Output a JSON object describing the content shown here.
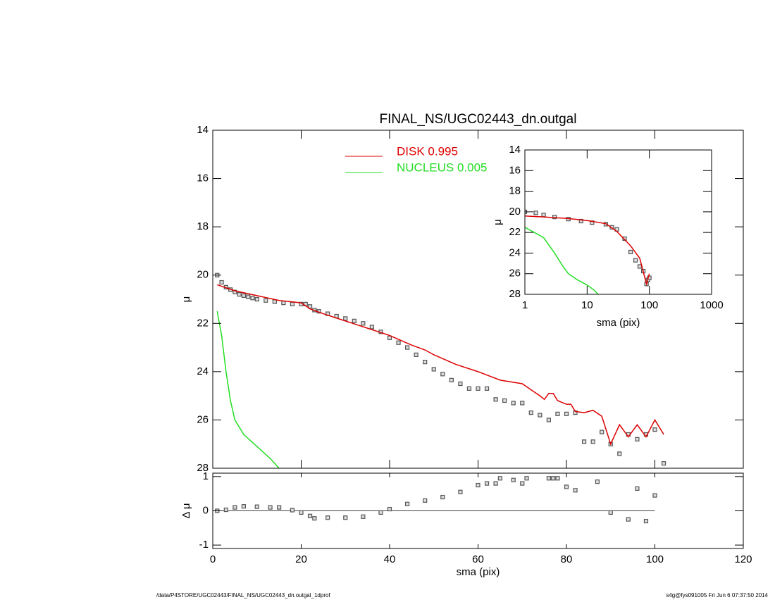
{
  "chart_data": [
    {
      "type": "scatter",
      "title": "FINAL_NS/UGC02443_dn.outgal",
      "ylabel": "μ",
      "xlim": [
        0,
        120
      ],
      "xticks": [
        0,
        20,
        40,
        60,
        80,
        100,
        120
      ],
      "ylim": [
        28,
        14
      ],
      "yticks": [
        14,
        16,
        18,
        20,
        22,
        24,
        26,
        28
      ],
      "legend": "top",
      "series": [
        {
          "mode": "markers",
          "color": "#555555",
          "x": [
            1,
            2,
            3,
            4,
            5,
            6,
            7,
            8,
            9,
            10,
            12,
            14,
            16,
            18,
            20,
            21,
            22,
            23,
            24,
            26,
            28,
            30,
            32,
            34,
            36,
            38,
            40,
            42,
            44,
            46,
            48,
            50,
            52,
            54,
            56,
            58,
            60,
            62,
            64,
            66,
            68,
            70,
            72,
            74,
            76,
            78,
            80,
            82,
            84,
            86,
            88,
            90,
            92,
            94,
            96,
            98,
            100,
            102
          ],
          "values": [
            20.0,
            20.3,
            20.5,
            20.6,
            20.7,
            20.8,
            20.85,
            20.9,
            20.95,
            21.0,
            21.05,
            21.1,
            21.15,
            21.2,
            21.2,
            21.2,
            21.3,
            21.45,
            21.5,
            21.6,
            21.7,
            21.8,
            21.9,
            22.0,
            22.15,
            22.35,
            22.6,
            22.8,
            23.0,
            23.3,
            23.6,
            23.9,
            24.1,
            24.35,
            24.5,
            24.7,
            24.7,
            24.7,
            25.15,
            25.2,
            25.3,
            25.3,
            25.7,
            25.8,
            26.0,
            25.75,
            25.75,
            25.7,
            26.9,
            26.9,
            26.5,
            27.0,
            27.4,
            26.6,
            26.8,
            26.6,
            26.4,
            27.8
          ]
        },
        {
          "name": "DISK  0.995",
          "mode": "lines",
          "color": "#dd0000",
          "x": [
            1,
            5,
            10,
            15,
            20,
            22,
            25,
            30,
            35,
            40,
            45,
            48,
            50,
            55,
            60,
            65,
            70,
            72,
            74,
            75,
            76,
            77,
            78,
            80,
            81,
            82,
            84,
            86,
            88,
            90,
            92,
            94,
            96,
            98,
            100,
            102
          ],
          "values": [
            20.4,
            20.65,
            20.85,
            21.05,
            21.15,
            21.4,
            21.6,
            21.9,
            22.2,
            22.5,
            22.9,
            23.1,
            23.3,
            23.7,
            24.0,
            24.35,
            24.5,
            24.75,
            25.0,
            25.15,
            24.9,
            24.9,
            25.2,
            25.35,
            25.35,
            25.65,
            25.7,
            25.6,
            25.85,
            27.0,
            26.2,
            26.7,
            26.2,
            26.7,
            26.0,
            26.6
          ]
        },
        {
          "name": "NUCLEUS  0.005",
          "mode": "lines",
          "color": "#22dd22",
          "x": [
            1,
            2,
            3,
            4,
            5,
            7,
            10,
            13,
            15
          ],
          "values": [
            21.5,
            22.5,
            24.0,
            25.2,
            26.0,
            26.6,
            27.1,
            27.6,
            28.0
          ]
        }
      ]
    },
    {
      "type": "scatter",
      "ylabel": "Δ μ",
      "xlabel": "sma (pix)",
      "xlim": [
        0,
        120
      ],
      "xticks": [
        0,
        20,
        40,
        60,
        80,
        100,
        120
      ],
      "ylim": [
        -1.1,
        1.1
      ],
      "yticks": [
        -1,
        0,
        1
      ],
      "series": [
        {
          "mode": "markers",
          "color": "#555555",
          "x": [
            1,
            3,
            5,
            7,
            10,
            13,
            15,
            18,
            20,
            22,
            23,
            26,
            30,
            34,
            38,
            40,
            44,
            48,
            52,
            56,
            60,
            62,
            64,
            65,
            68,
            70,
            71,
            76,
            77,
            78,
            80,
            82,
            87,
            90,
            94,
            96,
            98,
            100
          ],
          "values": [
            0.0,
            0.03,
            0.1,
            0.13,
            0.12,
            0.1,
            0.1,
            0.02,
            -0.05,
            -0.15,
            -0.22,
            -0.2,
            -0.2,
            -0.17,
            -0.05,
            0.05,
            0.2,
            0.3,
            0.4,
            0.55,
            0.75,
            0.8,
            0.8,
            0.95,
            0.9,
            0.8,
            0.95,
            0.95,
            0.95,
            0.95,
            0.7,
            0.6,
            0.85,
            -0.05,
            -0.25,
            0.65,
            -0.3,
            0.45
          ]
        }
      ]
    },
    {
      "type": "scatter",
      "ylabel": "μ",
      "xlabel": "sma (pix)",
      "xlog": true,
      "xlim": [
        1,
        1000
      ],
      "xticks": [
        1,
        10,
        100,
        1000
      ],
      "ylim": [
        28,
        14
      ],
      "yticks": [
        14,
        16,
        18,
        20,
        22,
        24,
        26,
        28
      ],
      "series": [
        {
          "mode": "markers",
          "color": "#555555",
          "x": [
            1,
            1.5,
            2,
            3,
            5,
            8,
            12,
            20,
            25,
            30,
            40,
            50,
            60,
            70,
            80,
            90,
            95,
            100
          ],
          "values": [
            20.0,
            20.1,
            20.3,
            20.5,
            20.7,
            20.9,
            21.05,
            21.2,
            21.5,
            21.7,
            22.6,
            23.9,
            24.7,
            25.3,
            25.75,
            27.0,
            26.6,
            26.4
          ]
        },
        {
          "mode": "lines",
          "color": "#dd0000",
          "x": [
            1,
            2,
            5,
            10,
            20,
            30,
            50,
            70,
            90,
            100
          ],
          "values": [
            20.4,
            20.5,
            20.65,
            20.85,
            21.15,
            21.9,
            23.3,
            24.5,
            27.0,
            26.0
          ]
        },
        {
          "mode": "lines",
          "color": "#22dd22",
          "x": [
            1,
            2,
            3,
            4,
            5,
            7,
            10,
            13,
            15
          ],
          "values": [
            21.5,
            22.5,
            24.0,
            25.2,
            26.0,
            26.6,
            27.1,
            27.6,
            28.0
          ]
        }
      ]
    }
  ],
  "footer": {
    "left": "/data/P4STORE/UGC02443/FINAL_NS/UGC02443_dn.outgal_1dprof",
    "right": "s4g@fys091005  Fri Jun  6 07:37:50 2014"
  }
}
